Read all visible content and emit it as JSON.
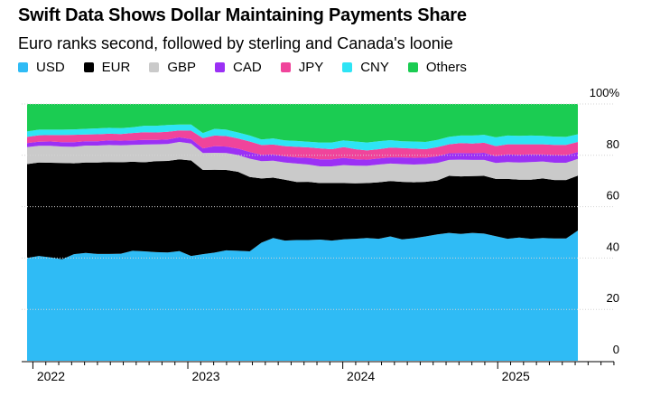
{
  "chart_data": {
    "type": "area",
    "stacked": true,
    "title": "Swift Data Shows Dollar Maintaining Payments Share",
    "subtitle": "Euro ranks second, followed by sterling and Canada's loonie",
    "ylim": [
      0,
      100
    ],
    "y_ticks": [
      {
        "value": 0,
        "label": "0"
      },
      {
        "value": 20,
        "label": "20"
      },
      {
        "value": 40,
        "label": "40"
      },
      {
        "value": 60,
        "label": "60"
      },
      {
        "value": 80,
        "label": "80"
      },
      {
        "value": 100,
        "label": "100%"
      }
    ],
    "x_ticks": [
      "2022",
      "2023",
      "2024",
      "2025"
    ],
    "x_first_label_index": 1,
    "x_label_step": 12,
    "xlim_months": 48,
    "legend_position": "top",
    "x": [
      "2021-12",
      "2022-01",
      "2022-02",
      "2022-03",
      "2022-04",
      "2022-05",
      "2022-06",
      "2022-07",
      "2022-08",
      "2022-09",
      "2022-10",
      "2022-11",
      "2022-12",
      "2023-01",
      "2023-02",
      "2023-03",
      "2023-04",
      "2023-05",
      "2023-06",
      "2023-07",
      "2023-08",
      "2023-09",
      "2023-10",
      "2023-11",
      "2023-12",
      "2024-01",
      "2024-02",
      "2024-03",
      "2024-04",
      "2024-05",
      "2024-06",
      "2024-07",
      "2024-08",
      "2024-09",
      "2024-10",
      "2024-11",
      "2024-12",
      "2025-01",
      "2025-02",
      "2025-03",
      "2025-04",
      "2025-05",
      "2025-06",
      "2025-07",
      "2025-08",
      "2025-09",
      "2025-10",
      "2025-11"
    ],
    "series": [
      {
        "name": "USD",
        "color": "#2fbbf5",
        "values": [
          40.0,
          40.8,
          40.2,
          39.5,
          41.5,
          42.0,
          41.6,
          41.6,
          41.7,
          42.8,
          42.6,
          42.3,
          42.2,
          42.7,
          40.8,
          41.5,
          42.1,
          43.0,
          42.8,
          42.6,
          46.0,
          47.8,
          46.8,
          47.0,
          47.0,
          47.2,
          46.8,
          47.3,
          47.5,
          47.8,
          47.5,
          48.4,
          47.3,
          47.7,
          48.4,
          49.2,
          49.8,
          49.4,
          49.8,
          49.5,
          48.5,
          47.5,
          48.0,
          47.5,
          47.8,
          47.6,
          47.6,
          50.7
        ]
      },
      {
        "name": "EUR",
        "color": "#000000",
        "values": [
          36.6,
          36.4,
          36.9,
          37.5,
          35.4,
          35.2,
          35.6,
          35.8,
          35.6,
          34.7,
          34.7,
          35.4,
          35.6,
          35.7,
          37.2,
          32.8,
          32.3,
          31.3,
          30.8,
          29.0,
          25.0,
          23.5,
          23.7,
          22.6,
          22.7,
          22.0,
          22.4,
          21.9,
          21.6,
          21.4,
          22.0,
          21.6,
          22.4,
          21.8,
          21.3,
          21.0,
          22.2,
          22.4,
          22.1,
          22.5,
          22.3,
          23.3,
          22.5,
          23.0,
          23.2,
          22.8,
          22.8,
          21.4
        ]
      },
      {
        "name": "GBP",
        "color": "#cacaca",
        "values": [
          6.6,
          6.5,
          6.6,
          6.4,
          6.4,
          6.6,
          6.6,
          6.6,
          6.6,
          6.6,
          6.9,
          6.6,
          6.6,
          6.8,
          6.6,
          6.6,
          6.6,
          6.6,
          6.5,
          7.1,
          6.7,
          6.6,
          6.7,
          7.2,
          6.7,
          6.5,
          6.5,
          7.0,
          6.9,
          6.7,
          6.9,
          6.8,
          6.9,
          6.9,
          6.9,
          6.8,
          6.2,
          6.5,
          6.3,
          6.2,
          6.2,
          6.6,
          6.7,
          6.9,
          6.6,
          6.7,
          6.7,
          6.5
        ]
      },
      {
        "name": "CAD",
        "color": "#9b30f5",
        "values": [
          1.6,
          1.6,
          1.7,
          1.7,
          1.8,
          1.7,
          1.7,
          1.8,
          1.8,
          1.7,
          1.8,
          1.7,
          1.8,
          1.8,
          1.7,
          1.8,
          2.6,
          2.5,
          2.5,
          2.6,
          2.5,
          2.5,
          2.4,
          2.4,
          2.6,
          2.7,
          2.7,
          2.8,
          2.5,
          2.4,
          2.4,
          2.4,
          2.6,
          2.6,
          2.5,
          2.6,
          2.6,
          2.6,
          2.6,
          2.8,
          2.7,
          3.0,
          3.0,
          3.0,
          2.7,
          3.0,
          2.9,
          2.7
        ]
      },
      {
        "name": "JPY",
        "color": "#f0449b",
        "values": [
          2.4,
          2.5,
          2.5,
          2.8,
          2.9,
          2.6,
          2.7,
          2.6,
          2.6,
          2.9,
          3.0,
          2.9,
          3.0,
          2.7,
          3.3,
          4.0,
          4.1,
          4.1,
          4.0,
          4.1,
          3.8,
          3.8,
          4.0,
          4.1,
          4.1,
          4.3,
          4.0,
          4.2,
          3.9,
          3.6,
          3.6,
          3.8,
          3.6,
          3.6,
          3.3,
          3.6,
          3.5,
          3.9,
          3.8,
          3.9,
          3.9,
          3.9,
          4.1,
          3.9,
          4.0,
          4.0,
          4.1,
          3.9
        ]
      },
      {
        "name": "CNY",
        "color": "#2ee4f5",
        "values": [
          2.1,
          2.2,
          2.1,
          2.1,
          2.1,
          2.2,
          2.3,
          2.3,
          2.3,
          2.2,
          2.5,
          2.6,
          2.6,
          2.3,
          2.4,
          2.0,
          2.6,
          2.5,
          2.3,
          2.3,
          2.2,
          2.4,
          2.2,
          2.3,
          2.2,
          2.3,
          2.6,
          2.6,
          3.0,
          3.1,
          3.1,
          2.9,
          2.7,
          2.8,
          2.8,
          2.8,
          2.9,
          2.9,
          3.1,
          3.1,
          3.4,
          3.4,
          3.3,
          3.4,
          3.3,
          3.2,
          3.1,
          3.0
        ]
      },
      {
        "name": "Others",
        "color": "#1bcc52",
        "values": [
          10.7,
          10.0,
          10.0,
          10.0,
          9.9,
          9.7,
          9.5,
          9.3,
          9.4,
          9.1,
          8.5,
          8.5,
          8.2,
          8.0,
          8.0,
          11.3,
          9.7,
          10.0,
          11.1,
          12.3,
          13.8,
          13.4,
          14.2,
          14.4,
          14.7,
          15.0,
          15.0,
          14.2,
          14.6,
          15.0,
          14.5,
          14.1,
          14.5,
          14.6,
          14.8,
          14.0,
          12.8,
          12.3,
          12.3,
          12.0,
          13.0,
          12.3,
          12.4,
          12.3,
          12.4,
          12.7,
          12.8,
          11.8
        ]
      }
    ]
  }
}
